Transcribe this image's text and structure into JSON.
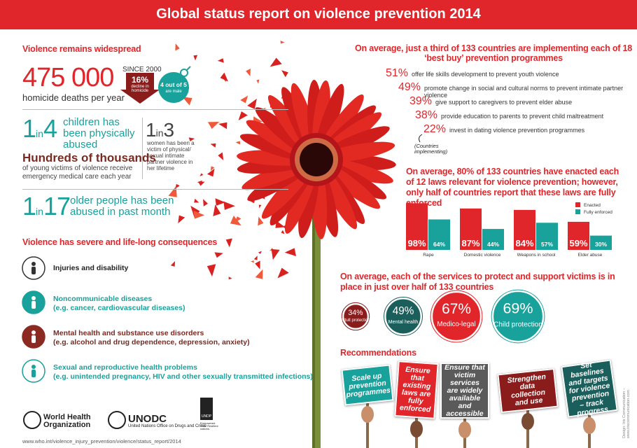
{
  "header": {
    "title": "Global status report on violence prevention 2014"
  },
  "widespread": {
    "heading": "Violence remains widespread",
    "homicide": {
      "number": "475 000",
      "caption": "homicide deaths per year",
      "since": "SINCE 2000",
      "decline": "16%",
      "decline_caption": "decline in homicide",
      "male": "4 out of 5",
      "male_caption": "are male"
    },
    "children": {
      "one": "1",
      "in": "in",
      "n": "4",
      "caption": "children has been physically abused"
    },
    "women": {
      "one": "1",
      "in": "in",
      "n": "3",
      "caption": "women has been a victim of physical/ sexual intimate partner violence in her lifetime"
    },
    "young": {
      "headline": "Hundreds of thousands",
      "caption": "of young victims of violence receive emergency medical care each year"
    },
    "older": {
      "one": "1",
      "in": "in",
      "n": "17",
      "caption": "older people has been abused in past month"
    }
  },
  "consequences": {
    "heading": "Violence has severe and life-long consequences",
    "items": [
      {
        "title": "Injuries and disability",
        "detail": ""
      },
      {
        "title": "Noncommunicable diseases",
        "detail": "(e.g. cancer, cardiovascular diseases)"
      },
      {
        "title": "Mental health and substance use disorders",
        "detail": "(e.g. alcohol and drug dependence, depression, anxiety)"
      },
      {
        "title": "Sexual and reproductive health problems",
        "detail": "(e.g. unintended pregnancy, HIV and other sexually transmitted infections)"
      }
    ]
  },
  "footer": {
    "who": "World Health Organization",
    "unodc": "UNODC",
    "unodc_full": "United Nations Office on Drugs and Crime",
    "undp": "UNDP",
    "undp_full": "Empowered lives. Resilient nations.",
    "url": "www.who.int/violence_injury_prevention/violence/status_report/2014"
  },
  "programmes": {
    "heading": "On average, just a third of 133 countries are implementing each of 18 ‘best buy’ prevention programmes",
    "items": [
      {
        "percent": "51%",
        "text": "offer life skills development to prevent youth violence"
      },
      {
        "percent": "49%",
        "text": "promote change in social and cultural norms to prevent intimate partner violence"
      },
      {
        "percent": "39%",
        "text": "give support to caregivers to prevent elder abuse"
      },
      {
        "percent": "38%",
        "text": "provide education to parents to prevent child maltreatment"
      },
      {
        "percent": "22%",
        "text": "invest in dating violence prevention programmes"
      }
    ],
    "note": "(Countries implementing)"
  },
  "chart_data": {
    "type": "bar",
    "title": "On average, 80% of 133 countries have enacted each of 12 laws relevant for violence prevention; however, only half of countries report that these laws are fully enforced",
    "categories": [
      "Rape",
      "Domestic violence",
      "Weapons in school",
      "Elder abuse"
    ],
    "series": [
      {
        "name": "Enacted",
        "color": "#e0262b",
        "values": [
          98,
          87,
          84,
          59
        ],
        "value_labels": [
          "98%",
          "87%",
          "84%",
          "59%"
        ]
      },
      {
        "name": "Fully enforced",
        "color": "#19a19b",
        "values": [
          64,
          44,
          57,
          30
        ],
        "value_labels": [
          "64%",
          "44%",
          "57%",
          "30%"
        ]
      }
    ],
    "legend": "top-right"
  },
  "services": {
    "heading": "On average, each of the services to protect and support victims is in place in just over half of 133 countries",
    "items": [
      {
        "value": 34,
        "value_label": "34%",
        "name": "Adult protection",
        "color": "#8b1c1c"
      },
      {
        "value": 49,
        "value_label": "49%",
        "name": "Mental health",
        "color": "#1b5f5c"
      },
      {
        "value": 67,
        "value_label": "67%",
        "name": "Medico-legal",
        "color": "#e0262b"
      },
      {
        "value": 69,
        "value_label": "69%",
        "name": "Child protection",
        "color": "#19a19b"
      }
    ]
  },
  "recommendations": {
    "heading": "Recommendations",
    "items": [
      {
        "text": "Scale up prevention programmes",
        "color": "#19a19b"
      },
      {
        "text": "Ensure that existing laws are fully enforced",
        "color": "#e0262b"
      },
      {
        "text": "Ensure that victim services are widely available and accessible",
        "color": "#5a5a5a"
      },
      {
        "text": "Strengthen data collection and use",
        "color": "#8b1c1c"
      },
      {
        "text": "Set baselines and targets for violence prevention – track progress",
        "color": "#1b5f5c"
      }
    ]
  },
  "credit": "Design: Iris Communication – www.iriscommunication.com"
}
